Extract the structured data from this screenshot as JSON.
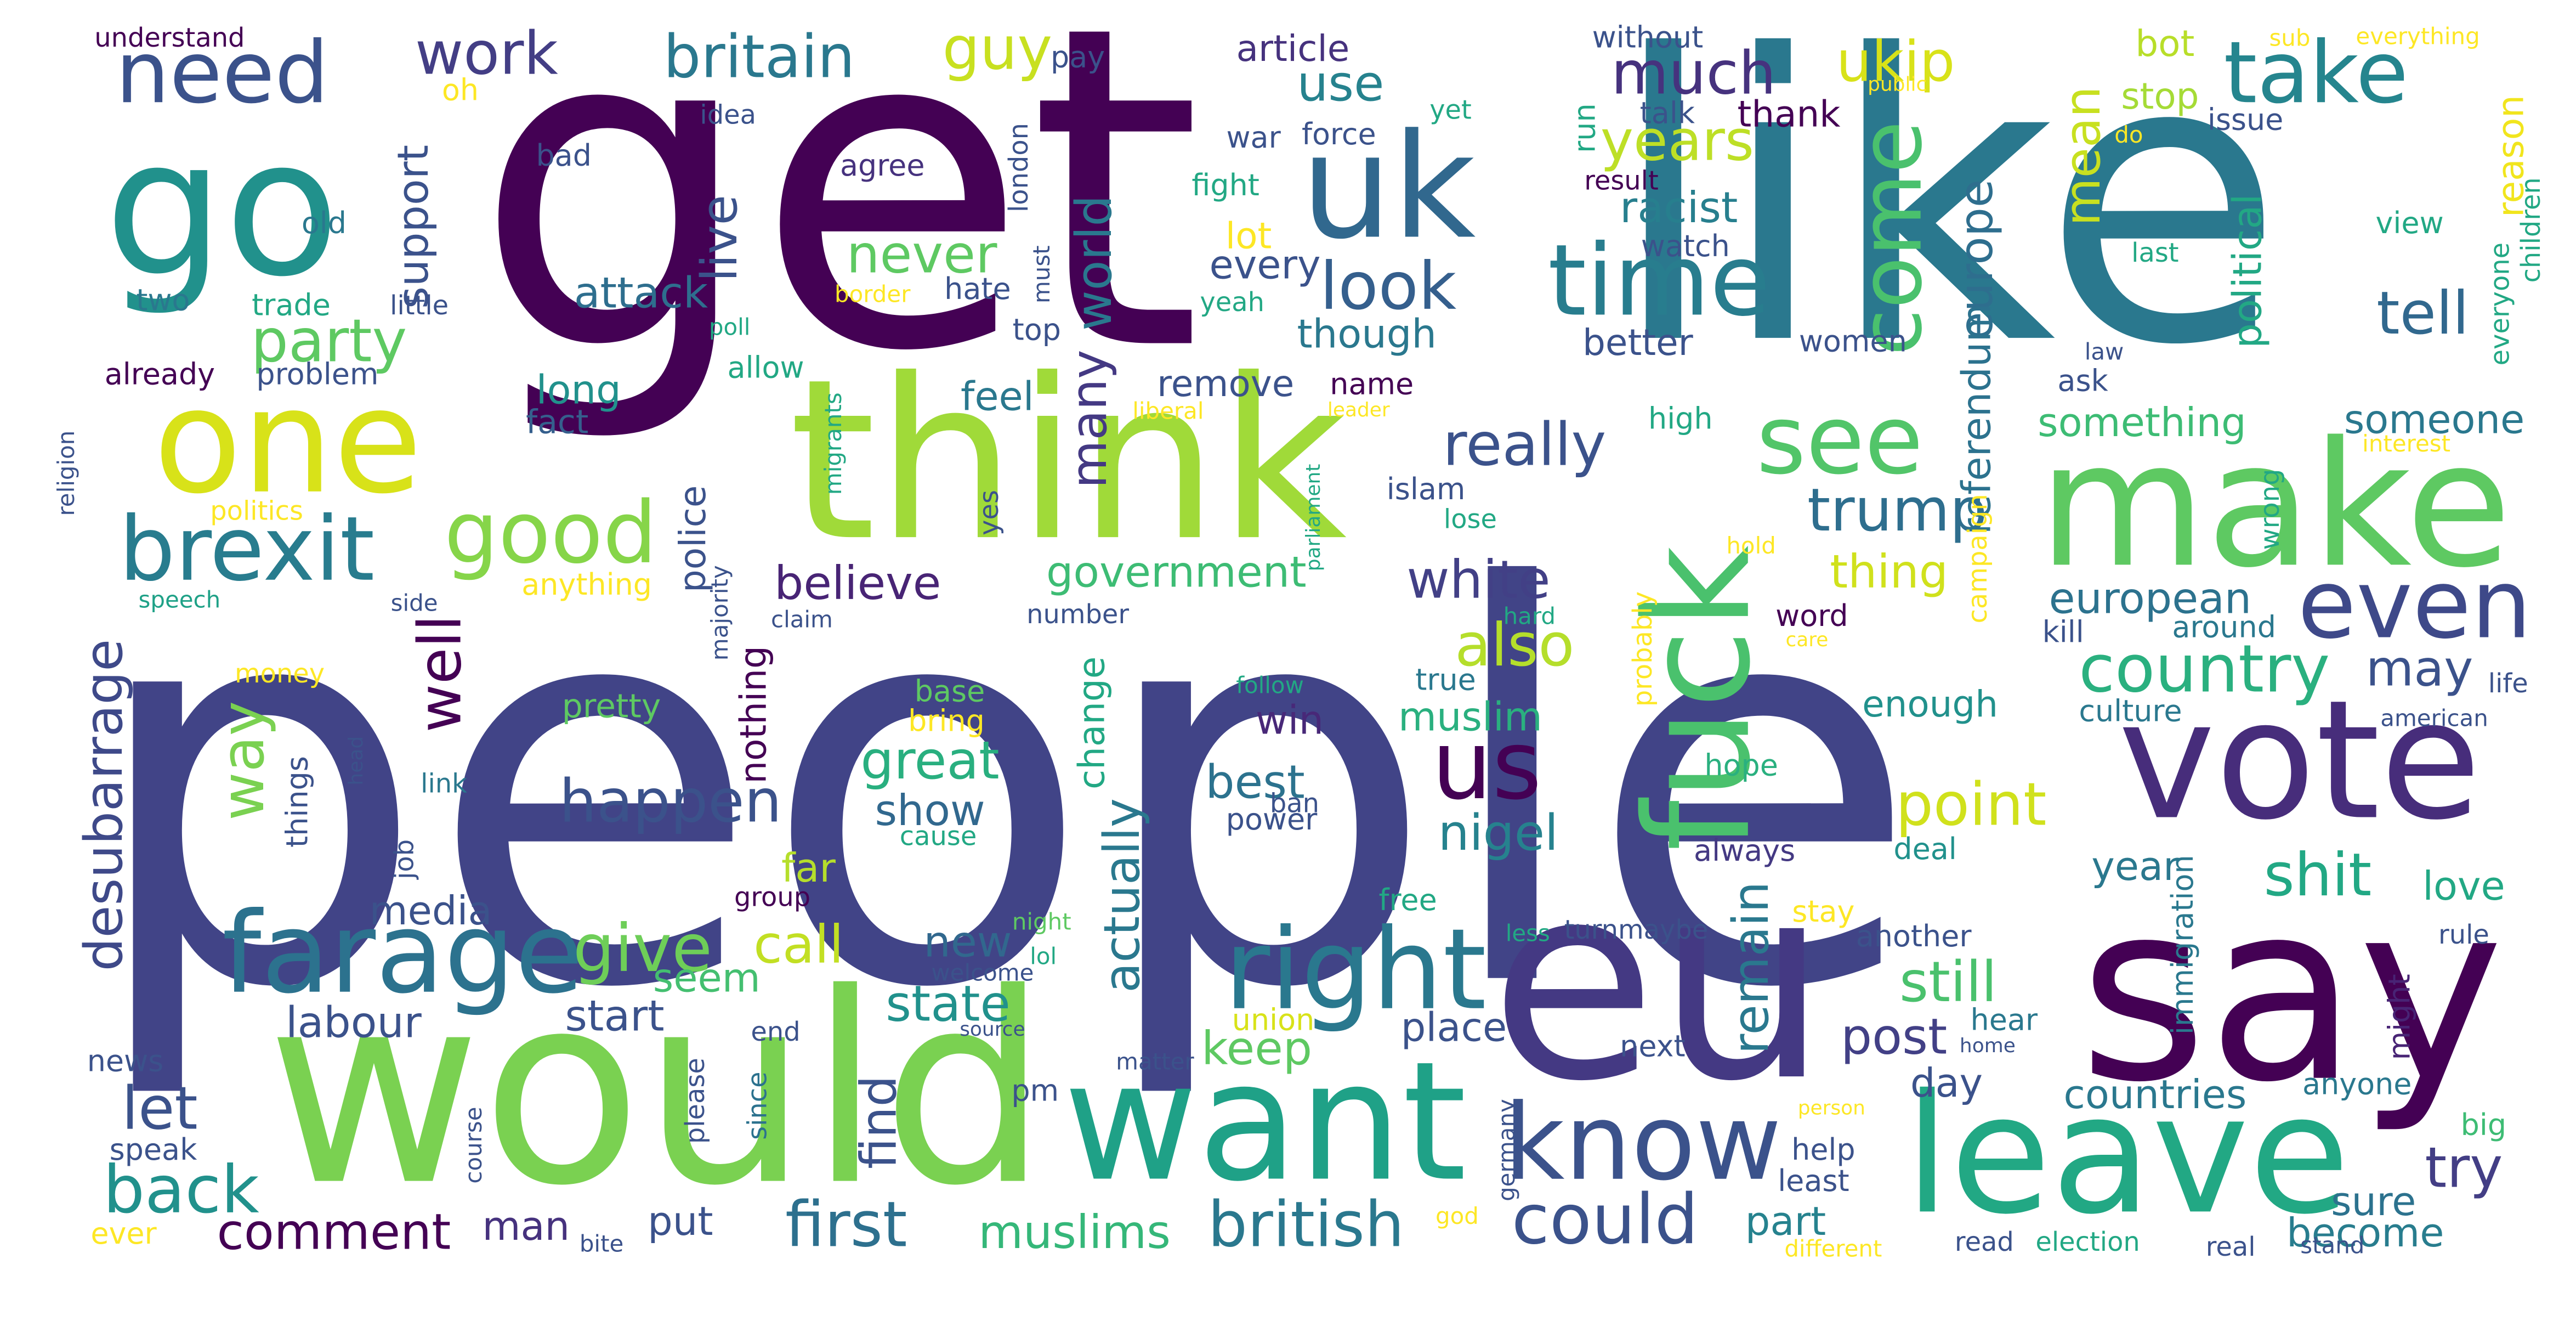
{
  "words": [
    {
      "text": "people",
      "color": "#414487"
    },
    {
      "text": "get",
      "color": "#440154"
    },
    {
      "text": "like",
      "color": "#2a788e"
    },
    {
      "text": "would",
      "color": "#7ad151"
    },
    {
      "text": "think",
      "color": "#a0da39"
    },
    {
      "text": "eu",
      "color": "#443983"
    },
    {
      "text": "say",
      "color": "#440154"
    },
    {
      "text": "make",
      "color": "#5ec962"
    },
    {
      "text": "go",
      "color": "#21918c"
    },
    {
      "text": "want",
      "color": "#1fa187"
    },
    {
      "text": "leave",
      "color": "#22a884"
    },
    {
      "text": "vote",
      "color": "#472d7b"
    },
    {
      "text": "one",
      "color": "#d8e219"
    },
    {
      "text": "uk",
      "color": "#31688e"
    },
    {
      "text": "fuck",
      "color": "#4ac16d"
    },
    {
      "text": "right",
      "color": "#2a788e"
    },
    {
      "text": "farage",
      "color": "#2c728e"
    },
    {
      "text": "know",
      "color": "#3b528b"
    },
    {
      "text": "brexit",
      "color": "#287c8e"
    },
    {
      "text": "need",
      "color": "#3b528b"
    },
    {
      "text": "take",
      "color": "#25858e"
    },
    {
      "text": "time",
      "color": "#287d8e"
    },
    {
      "text": "good",
      "color": "#86d549"
    },
    {
      "text": "us",
      "color": "#440154"
    },
    {
      "text": "see",
      "color": "#52c569"
    },
    {
      "text": "even",
      "color": "#3e4989"
    },
    {
      "text": "come",
      "color": "#4ac16d"
    },
    {
      "text": "could",
      "color": "#3b528b"
    },
    {
      "text": "british",
      "color": "#2a788e"
    },
    {
      "text": "country",
      "color": "#2ab07f"
    },
    {
      "text": "give",
      "color": "#6ece58"
    },
    {
      "text": "back",
      "color": "#21918c"
    },
    {
      "text": "look",
      "color": "#355f8d"
    },
    {
      "text": "first",
      "color": "#2d708e"
    },
    {
      "text": "much",
      "color": "#46327e"
    },
    {
      "text": "really",
      "color": "#3b528b"
    },
    {
      "text": "happen",
      "color": "#3b528b"
    },
    {
      "text": "britain",
      "color": "#2a788e"
    },
    {
      "text": "party",
      "color": "#5ec962"
    },
    {
      "text": "work",
      "color": "#433e85"
    },
    {
      "text": "white",
      "color": "#424086"
    },
    {
      "text": "also",
      "color": "#b5de2b"
    },
    {
      "text": "trump",
      "color": "#2e6e8e"
    },
    {
      "text": "years",
      "color": "#bddf26"
    },
    {
      "text": "point",
      "color": "#d0e11c"
    },
    {
      "text": "ukip",
      "color": "#d8e219"
    },
    {
      "text": "tell",
      "color": "#31688e"
    },
    {
      "text": "way",
      "color": "#7ad151"
    },
    {
      "text": "well",
      "color": "#440154"
    },
    {
      "text": "great",
      "color": "#29af7f"
    },
    {
      "text": "europe",
      "color": "#2e6e8e"
    },
    {
      "text": "try",
      "color": "#433e85"
    },
    {
      "text": "call",
      "color": "#c2df23"
    },
    {
      "text": "desubarrage",
      "color": "#3e4989"
    },
    {
      "text": "guy",
      "color": "#c8e020"
    },
    {
      "text": "post",
      "color": "#424086"
    },
    {
      "text": "still",
      "color": "#4ac16d"
    },
    {
      "text": "shit",
      "color": "#22a884"
    },
    {
      "text": "may",
      "color": "#3b528b"
    },
    {
      "text": "let",
      "color": "#3b528b"
    },
    {
      "text": "comment",
      "color": "#440154"
    },
    {
      "text": "mean",
      "color": "#c8e020"
    },
    {
      "text": "never",
      "color": "#5ec962"
    },
    {
      "text": "use",
      "color": "#26828e"
    },
    {
      "text": "world",
      "color": "#2a788e"
    },
    {
      "text": "many",
      "color": "#443983"
    },
    {
      "text": "european",
      "color": "#2c728e"
    },
    {
      "text": "government",
      "color": "#3dbc74"
    },
    {
      "text": "live",
      "color": "#3b528b"
    },
    {
      "text": "racist",
      "color": "#277f8e"
    },
    {
      "text": "attack",
      "color": "#2e6e8e"
    },
    {
      "text": "support",
      "color": "#3b528b"
    },
    {
      "text": "believe",
      "color": "#482475"
    },
    {
      "text": "remain",
      "color": "#2a788e"
    },
    {
      "text": "political",
      "color": "#22a884"
    },
    {
      "text": "referendum",
      "color": "#2c728e"
    },
    {
      "text": "thing",
      "color": "#d0e11c"
    },
    {
      "text": "actually",
      "color": "#2a788e"
    },
    {
      "text": "new",
      "color": "#31688e"
    },
    {
      "text": "state",
      "color": "#21918c"
    },
    {
      "text": "labour",
      "color": "#3b528b"
    },
    {
      "text": "start",
      "color": "#3b528b"
    },
    {
      "text": "find",
      "color": "#3b528b"
    },
    {
      "text": "keep",
      "color": "#5ec962"
    },
    {
      "text": "best",
      "color": "#2c728e"
    },
    {
      "text": "muslims",
      "color": "#35b779"
    },
    {
      "text": "nigel",
      "color": "#26828e"
    },
    {
      "text": "show",
      "color": "#31688e"
    },
    {
      "text": "win",
      "color": "#482878"
    },
    {
      "text": "place",
      "color": "#3b528b"
    },
    {
      "text": "put",
      "color": "#3b528b"
    },
    {
      "text": "man",
      "color": "#46327e"
    },
    {
      "text": "part",
      "color": "#26828e"
    },
    {
      "text": "become",
      "color": "#287d8e"
    },
    {
      "text": "sure",
      "color": "#2c728e"
    },
    {
      "text": "countries",
      "color": "#2a788e"
    },
    {
      "text": "love",
      "color": "#22a884"
    },
    {
      "text": "year",
      "color": "#2a788e"
    },
    {
      "text": "day",
      "color": "#3b528b"
    },
    {
      "text": "media",
      "color": "#3b528b"
    },
    {
      "text": "far",
      "color": "#b5de2b"
    },
    {
      "text": "seem",
      "color": "#44bf70"
    },
    {
      "text": "something",
      "color": "#3dbc74"
    },
    {
      "text": "someone",
      "color": "#2a788e"
    },
    {
      "text": "better",
      "color": "#3b528b"
    },
    {
      "text": "though",
      "color": "#2a788e"
    },
    {
      "text": "every",
      "color": "#3b528b"
    },
    {
      "text": "lot",
      "color": "#fde725"
    },
    {
      "text": "feel",
      "color": "#2a788e"
    },
    {
      "text": "long",
      "color": "#21918c"
    },
    {
      "text": "fact",
      "color": "#355f8d"
    },
    {
      "text": "remove",
      "color": "#3b528b"
    },
    {
      "text": "muslim",
      "color": "#2ab07f"
    },
    {
      "text": "nothing",
      "color": "#440154"
    },
    {
      "text": "police",
      "color": "#3b528b"
    },
    {
      "text": "change",
      "color": "#22a884"
    },
    {
      "text": "stop",
      "color": "#a5db36"
    },
    {
      "text": "bot",
      "color": "#b8de29"
    },
    {
      "text": "reason",
      "color": "#f1e51d"
    },
    {
      "text": "article",
      "color": "#46327e"
    },
    {
      "text": "thank",
      "color": "#440154"
    },
    {
      "text": "islam",
      "color": "#3b528b"
    },
    {
      "text": "kill",
      "color": "#3b528b"
    },
    {
      "text": "around",
      "color": "#2a788e"
    },
    {
      "text": "culture",
      "color": "#2a788e"
    },
    {
      "text": "enough",
      "color": "#21918c"
    },
    {
      "text": "hope",
      "color": "#2ab07f"
    },
    {
      "text": "always",
      "color": "#443983"
    },
    {
      "text": "deal",
      "color": "#21918c"
    },
    {
      "text": "another",
      "color": "#3b528b"
    },
    {
      "text": "next",
      "color": "#3b528b"
    },
    {
      "text": "hear",
      "color": "#2a788e"
    },
    {
      "text": "anyone",
      "color": "#2a788e"
    },
    {
      "text": "might",
      "color": "#482475"
    },
    {
      "text": "rule",
      "color": "#3b528b"
    },
    {
      "text": "big",
      "color": "#3dbc74"
    },
    {
      "text": "immigration",
      "color": "#2a788e"
    },
    {
      "text": "union",
      "color": "#d8e219"
    },
    {
      "text": "matter",
      "color": "#3b528b"
    },
    {
      "text": "end",
      "color": "#3b528b"
    },
    {
      "text": "since",
      "color": "#2c728e"
    },
    {
      "text": "pm",
      "color": "#3b528b"
    },
    {
      "text": "please",
      "color": "#3b528b"
    },
    {
      "text": "group",
      "color": "#440154"
    },
    {
      "text": "course",
      "color": "#3b528b"
    },
    {
      "text": "speak",
      "color": "#3b528b"
    },
    {
      "text": "news",
      "color": "#3b528b"
    },
    {
      "text": "ever",
      "color": "#fde725"
    },
    {
      "text": "bite",
      "color": "#3b528b"
    },
    {
      "text": "job",
      "color": "#3b528b"
    },
    {
      "text": "link",
      "color": "#2a788e"
    },
    {
      "text": "things",
      "color": "#3b528b"
    },
    {
      "text": "head",
      "color": "#3b528b"
    },
    {
      "text": "money",
      "color": "#fde725"
    },
    {
      "text": "speech",
      "color": "#1fa187"
    },
    {
      "text": "side",
      "color": "#3b528b"
    },
    {
      "text": "anything",
      "color": "#fde725"
    },
    {
      "text": "politics",
      "color": "#fde725"
    },
    {
      "text": "religion",
      "color": "#3b528b"
    },
    {
      "text": "already",
      "color": "#440154"
    },
    {
      "text": "problem",
      "color": "#3b528b"
    },
    {
      "text": "allow",
      "color": "#22a884"
    },
    {
      "text": "trade",
      "color": "#22a884"
    },
    {
      "text": "little",
      "color": "#3b528b"
    },
    {
      "text": "two",
      "color": "#2a788e"
    },
    {
      "text": "old",
      "color": "#2a788e"
    },
    {
      "text": "bad",
      "color": "#3b528b"
    },
    {
      "text": "idea",
      "color": "#3b528b"
    },
    {
      "text": "agree",
      "color": "#46327e"
    },
    {
      "text": "hate",
      "color": "#3b528b"
    },
    {
      "text": "top",
      "color": "#3b528b"
    },
    {
      "text": "border",
      "color": "#fde725"
    },
    {
      "text": "poll",
      "color": "#22a884"
    },
    {
      "text": "must",
      "color": "#3b528b"
    },
    {
      "text": "london",
      "color": "#3b528b"
    },
    {
      "text": "migrants",
      "color": "#22a884"
    },
    {
      "text": "majority",
      "color": "#3b528b"
    },
    {
      "text": "yes",
      "color": "#3b528b"
    },
    {
      "text": "claim",
      "color": "#3b528b"
    },
    {
      "text": "number",
      "color": "#3b528b"
    },
    {
      "text": "base",
      "color": "#5ec962"
    },
    {
      "text": "bring",
      "color": "#fde725"
    },
    {
      "text": "pretty",
      "color": "#5ec962"
    },
    {
      "text": "follow",
      "color": "#22a884"
    },
    {
      "text": "cause",
      "color": "#22a884"
    },
    {
      "text": "ban",
      "color": "#3b528b"
    },
    {
      "text": "power",
      "color": "#3b528b"
    },
    {
      "text": "name",
      "color": "#440154"
    },
    {
      "text": "liberal",
      "color": "#fde725"
    },
    {
      "text": "leader",
      "color": "#fde725"
    },
    {
      "text": "true",
      "color": "#2a788e"
    },
    {
      "text": "free",
      "color": "#22a884"
    },
    {
      "text": "less",
      "color": "#22a884"
    },
    {
      "text": "turnmaybe",
      "color": "#3b528b"
    },
    {
      "text": "night",
      "color": "#5ec962"
    },
    {
      "text": "lol",
      "color": "#22a884"
    },
    {
      "text": "welcome",
      "color": "#3b528b"
    },
    {
      "text": "source",
      "color": "#3b528b"
    },
    {
      "text": "god",
      "color": "#fde725"
    },
    {
      "text": "germany",
      "color": "#3b528b"
    },
    {
      "text": "help",
      "color": "#3b528b"
    },
    {
      "text": "least",
      "color": "#3b528b"
    },
    {
      "text": "person",
      "color": "#fde725"
    },
    {
      "text": "stay",
      "color": "#fde725"
    },
    {
      "text": "word",
      "color": "#440154"
    },
    {
      "text": "care",
      "color": "#fde725"
    },
    {
      "text": "hard",
      "color": "#22a884"
    },
    {
      "text": "probably",
      "color": "#fde725"
    },
    {
      "text": "lose",
      "color": "#22a884"
    },
    {
      "text": "high",
      "color": "#22a884"
    },
    {
      "text": "parliament",
      "color": "#22a884"
    },
    {
      "text": "hold",
      "color": "#fde725"
    },
    {
      "text": "campaign",
      "color": "#fde725"
    },
    {
      "text": "wrong",
      "color": "#22a884"
    },
    {
      "text": "interest",
      "color": "#fde725"
    },
    {
      "text": "ask",
      "color": "#3b528b"
    },
    {
      "text": "law",
      "color": "#3b528b"
    },
    {
      "text": "women",
      "color": "#3b528b"
    },
    {
      "text": "watch",
      "color": "#3b528b"
    },
    {
      "text": "result",
      "color": "#440154"
    },
    {
      "text": "talk",
      "color": "#3b528b"
    },
    {
      "text": "run",
      "color": "#22a884"
    },
    {
      "text": "without",
      "color": "#3b528b"
    },
    {
      "text": "public",
      "color": "#fde725"
    },
    {
      "text": "sub",
      "color": "#fde725"
    },
    {
      "text": "everything",
      "color": "#fde725"
    },
    {
      "text": "issue",
      "color": "#3b528b"
    },
    {
      "text": "do",
      "color": "#fde725"
    },
    {
      "text": "last",
      "color": "#22a884"
    },
    {
      "text": "view",
      "color": "#22a884"
    },
    {
      "text": "children",
      "color": "#22a884"
    },
    {
      "text": "everyone",
      "color": "#22a884"
    },
    {
      "text": "life",
      "color": "#3b528b"
    },
    {
      "text": "american",
      "color": "#3b528b"
    },
    {
      "text": "yeah",
      "color": "#22a884"
    },
    {
      "text": "yet",
      "color": "#22a884"
    },
    {
      "text": "war",
      "color": "#3b528b"
    },
    {
      "text": "force",
      "color": "#3b528b"
    },
    {
      "text": "fight",
      "color": "#22a884"
    },
    {
      "text": "pay",
      "color": "#3b528b"
    },
    {
      "text": "oh",
      "color": "#fde725"
    },
    {
      "text": "understand",
      "color": "#440154"
    },
    {
      "text": "read",
      "color": "#3b528b"
    },
    {
      "text": "election",
      "color": "#22a884"
    },
    {
      "text": "real",
      "color": "#3b528b"
    },
    {
      "text": "stand",
      "color": "#3b528b"
    },
    {
      "text": "different",
      "color": "#fde725"
    },
    {
      "text": "home",
      "color": "#3b528b"
    }
  ]
}
